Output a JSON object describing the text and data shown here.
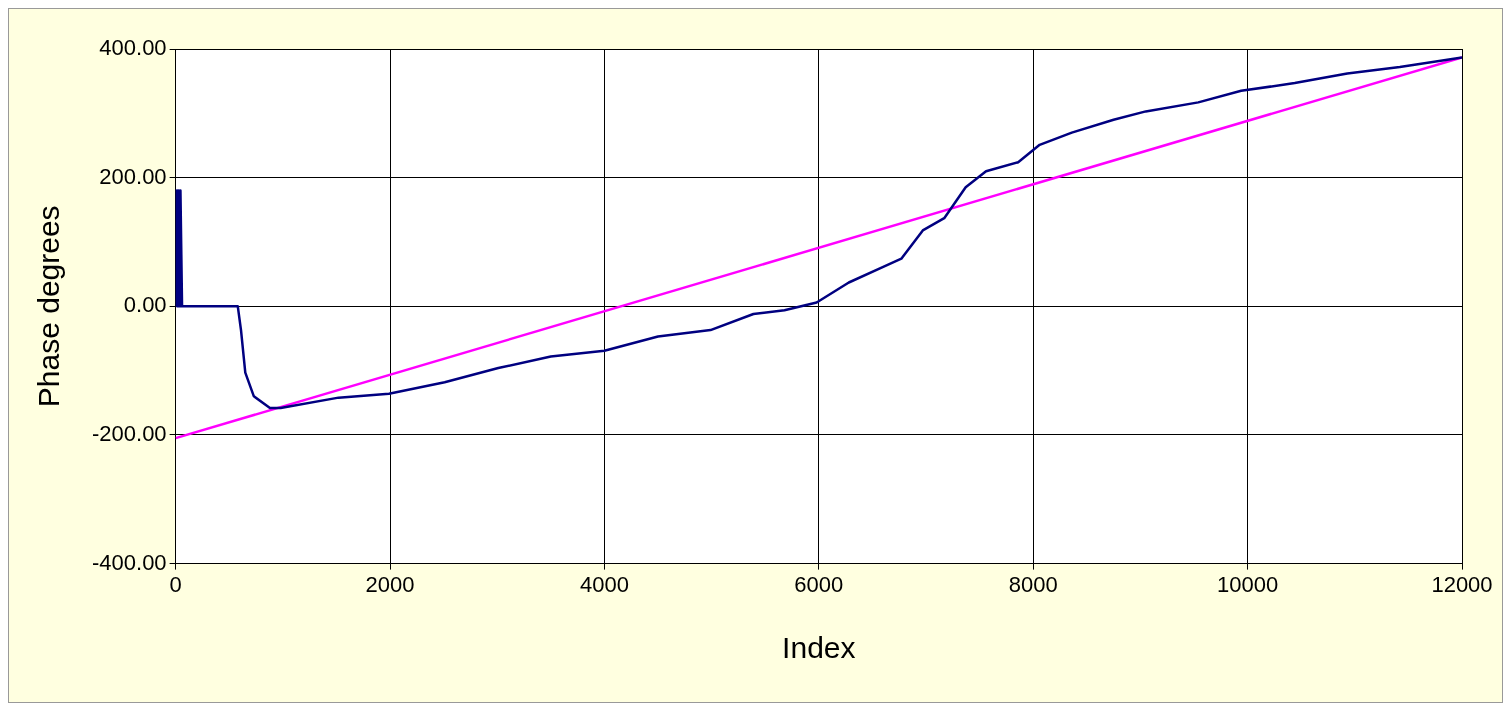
{
  "chart_data": {
    "type": "line",
    "xlabel": "Index",
    "ylabel": "Phase degrees",
    "xlim": [
      0,
      12000
    ],
    "xticks": [
      0,
      2000,
      4000,
      6000,
      8000,
      10000,
      12000
    ],
    "ylim": [
      -400,
      400
    ],
    "yticks": [
      {
        "value": -400,
        "label": "-400.00"
      },
      {
        "value": -200,
        "label": "-200.00"
      },
      {
        "value": 0,
        "label": "0.00"
      },
      {
        "value": 200,
        "label": "200.00"
      },
      {
        "value": 400,
        "label": "400.00"
      }
    ],
    "grid": true,
    "legend": false,
    "marker": "none",
    "line_style": "solid",
    "series": [
      {
        "color": "#000080",
        "x": [
          0,
          0,
          15,
          15,
          30,
          30,
          45,
          45,
          60,
          60,
          580,
          610,
          650,
          730,
          880,
          980,
          1520,
          1990,
          2510,
          3010,
          3500,
          4000,
          4500,
          4990,
          5390,
          5680,
          5980,
          6280,
          6570,
          6770,
          6970,
          7170,
          7370,
          7560,
          7860,
          8060,
          8360,
          8750,
          9050,
          9540,
          9940,
          10440,
          10930,
          11420,
          12000
        ],
        "values": [
          0,
          180,
          0,
          180,
          0,
          180,
          0,
          180,
          0,
          0,
          0,
          -37,
          -103,
          -140,
          -158,
          -158,
          -142,
          -136,
          -118,
          -96,
          -78,
          -69,
          -47,
          -37,
          -12,
          -6,
          6,
          37,
          59,
          74,
          118,
          137,
          185,
          210,
          224,
          251,
          270,
          290,
          303,
          317,
          335,
          347,
          362,
          372,
          387
        ]
      },
      {
        "color": "#ff00ff",
        "x": [
          0,
          12000
        ],
        "values": [
          -205,
          387
        ]
      }
    ]
  }
}
